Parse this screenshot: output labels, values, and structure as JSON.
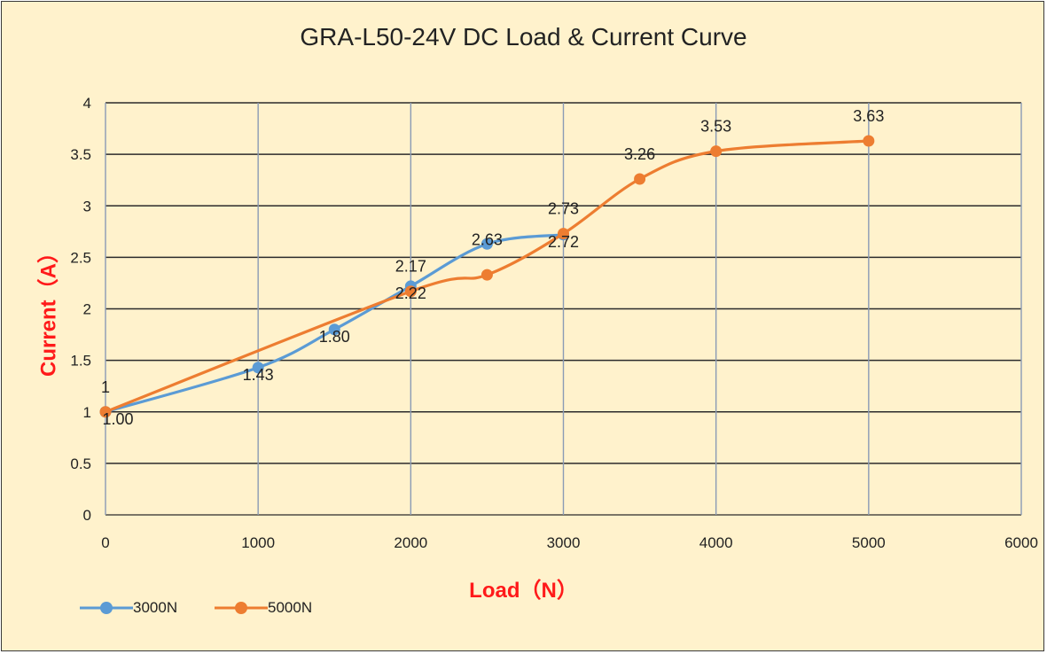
{
  "colors": {
    "background": "#fff2cc",
    "grid": "#8a9bb5",
    "axis_label": "#ff1a1a",
    "series1": "#5b9bd5",
    "series2": "#ed7d31"
  },
  "chart_data": {
    "type": "line",
    "title": "GRA-L50-24V DC Load & Current Curve",
    "xlabel": "Load（N）",
    "ylabel": "Current（A）",
    "xlim": [
      0,
      6000
    ],
    "ylim": [
      0,
      4
    ],
    "xticks": [
      "0",
      "1000",
      "2000",
      "3000",
      "4000",
      "5000",
      "6000"
    ],
    "yticks": [
      "0",
      "0.5",
      "1",
      "1.5",
      "2",
      "2.5",
      "3",
      "3.5",
      "4"
    ],
    "grid": true,
    "legend": "bottom-left",
    "series": [
      {
        "name": "3000N",
        "color": "#5b9bd5",
        "x": [
          0,
          1000,
          1500,
          2000,
          2500,
          3000
        ],
        "y": [
          1.0,
          1.43,
          1.8,
          2.22,
          2.63,
          2.72
        ],
        "labels": [
          "1.00",
          "1.43",
          "1.80",
          "2.22",
          "2.63",
          "2.72"
        ]
      },
      {
        "name": "5000N",
        "color": "#ed7d31",
        "x": [
          0,
          2000,
          2500,
          3000,
          3500,
          4000,
          5000
        ],
        "y": [
          1.0,
          2.17,
          2.33,
          2.73,
          3.26,
          3.53,
          3.63
        ],
        "labels": [
          "1",
          "2.17",
          "",
          "2.73",
          "3.26",
          "3.53",
          "3.63"
        ]
      }
    ]
  }
}
